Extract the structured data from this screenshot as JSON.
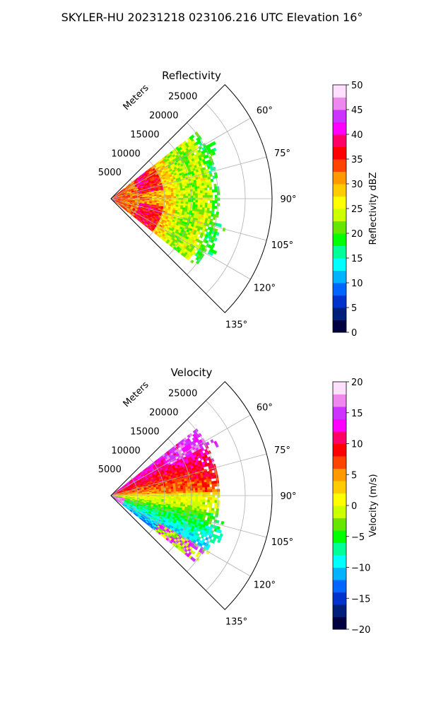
{
  "figure": {
    "title": "SKYLER-HU  20231218  023106.216 UTC Elevation 16°"
  },
  "chart_data": [
    {
      "type": "heatmap",
      "title": "Reflectivity",
      "projection": "polar-sector",
      "radial_label": "Meters",
      "radial_ticks": [
        "5000",
        "10000",
        "15000",
        "20000",
        "25000"
      ],
      "radial_tick_values": [
        5000,
        10000,
        15000,
        20000,
        25000
      ],
      "rlim": [
        0,
        30000
      ],
      "theta_range_deg": [
        45,
        135
      ],
      "theta_tick_values": [
        60,
        75,
        90,
        105,
        120,
        135
      ],
      "theta_ticks": [
        "60°",
        "75°",
        "90°",
        "105°",
        "120°",
        "135°"
      ],
      "grid": true,
      "data_extent": {
        "r_max_m": 22000,
        "theta_range_deg": [
          52,
          128
        ]
      },
      "colorbar": {
        "label": "Reflectivity dBZ",
        "range": [
          0,
          50
        ],
        "ticks": [
          "0",
          "5",
          "10",
          "15",
          "20",
          "25",
          "30",
          "35",
          "40",
          "45",
          "50"
        ],
        "tick_values": [
          0,
          5,
          10,
          15,
          20,
          25,
          30,
          35,
          40,
          45,
          50
        ]
      }
    },
    {
      "type": "heatmap",
      "title": "Velocity",
      "projection": "polar-sector",
      "radial_label": "Meters",
      "radial_ticks": [
        "5000",
        "10000",
        "15000",
        "20000",
        "25000"
      ],
      "radial_tick_values": [
        5000,
        10000,
        15000,
        20000,
        25000
      ],
      "rlim": [
        0,
        30000
      ],
      "theta_range_deg": [
        45,
        135
      ],
      "theta_tick_values": [
        60,
        75,
        90,
        105,
        120,
        135
      ],
      "theta_ticks": [
        "60°",
        "75°",
        "90°",
        "105°",
        "120°",
        "135°"
      ],
      "grid": true,
      "data_extent": {
        "r_max_m": 22000,
        "theta_range_deg": [
          52,
          128
        ]
      },
      "colorbar": {
        "label": "Velocity (m/s)",
        "range": [
          -20,
          20
        ],
        "ticks": [
          "−20",
          "−15",
          "−10",
          "−5",
          "0",
          "5",
          "10",
          "15",
          "20"
        ],
        "tick_values": [
          -20,
          -15,
          -10,
          -5,
          0,
          5,
          10,
          15,
          20
        ]
      }
    }
  ],
  "colormap": [
    "#000040",
    "#001f7a",
    "#0033cc",
    "#0066ff",
    "#00b3ff",
    "#00ffff",
    "#00ff99",
    "#00ff00",
    "#66e600",
    "#ccff00",
    "#ffff00",
    "#ffcc00",
    "#ff9900",
    "#ff4400",
    "#ff0000",
    "#ff0066",
    "#ff00ff",
    "#cc33ff",
    "#ee88ee",
    "#ffe0ff"
  ]
}
